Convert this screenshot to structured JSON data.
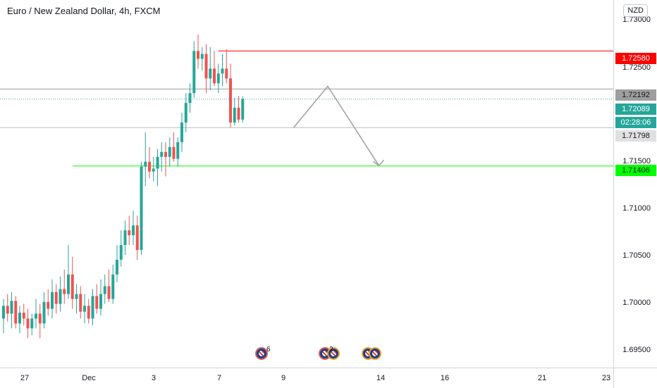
{
  "header": {
    "title": "Euro / New Zealand Dollar, 4h, FXCM"
  },
  "price_axis": {
    "currency_button": "NZD",
    "ticks": [
      "1.73000",
      "1.72500",
      "1.71500",
      "1.71000",
      "1.70500",
      "1.70000",
      "1.69500"
    ]
  },
  "time_axis": {
    "ticks": [
      "27",
      "Dec",
      "3",
      "7",
      "9",
      "14",
      "16",
      "21",
      "23"
    ]
  },
  "price_labels": [
    {
      "text": "1.72580",
      "bg": "#ff0000",
      "fg": "#ffffff",
      "name": "resistance-price-label"
    },
    {
      "text": "1.72192",
      "bg": "#9e9e9e",
      "fg": "#131722",
      "name": "horizontal-level-price-label"
    },
    {
      "text": "1.72089",
      "bg": "#26a69a",
      "fg": "#ffffff",
      "name": "last-price-label"
    },
    {
      "text": "02:28:06",
      "bg": "#26a69a",
      "fg": "#ffffff",
      "name": "bar-countdown-label"
    },
    {
      "text": "1.71798",
      "bg": "#e0e0e0",
      "fg": "#131722",
      "name": "lower-level-price-label"
    },
    {
      "text": "1.71406",
      "bg": "#00ff00",
      "fg": "#131722",
      "name": "target-price-label"
    }
  ],
  "events": [
    {
      "count": "6",
      "name": "economic-event-group-1"
    },
    {
      "count": "2",
      "name": "economic-event-group-2"
    },
    {
      "count": "",
      "name": "economic-event-group-3"
    }
  ],
  "colors": {
    "up": "#26a69a",
    "down": "#ef5350",
    "resistance": "#ff0000",
    "target": "#00ff00",
    "level": "#9e9e9e",
    "projection": "#9e9e9e"
  },
  "chart_data": {
    "type": "candlestick",
    "symbol": "EUR/NZD",
    "interval": "4h",
    "ylim": [
      1.6935,
      1.731
    ],
    "candles": [
      [
        1.6985,
        1.7005,
        1.697,
        1.6998
      ],
      [
        1.6998,
        1.701,
        1.6982,
        1.699
      ],
      [
        1.699,
        1.7012,
        1.6975,
        1.7003
      ],
      [
        1.7003,
        1.7008,
        1.6975,
        1.698
      ],
      [
        1.698,
        1.6998,
        1.697,
        1.6991
      ],
      [
        1.6991,
        1.7,
        1.6978,
        1.6985
      ],
      [
        1.6985,
        1.6995,
        1.6965,
        1.6975
      ],
      [
        1.6975,
        1.699,
        1.6968,
        1.6985
      ],
      [
        1.6985,
        1.7005,
        1.6975,
        1.699
      ],
      [
        1.699,
        1.7,
        1.6965,
        1.698
      ],
      [
        1.698,
        1.7012,
        1.6975,
        1.7002
      ],
      [
        1.7002,
        1.7015,
        1.6988,
        1.6995
      ],
      [
        1.6995,
        1.7025,
        1.6985,
        1.7012
      ],
      [
        1.7012,
        1.702,
        1.699,
        1.7
      ],
      [
        1.7,
        1.7028,
        1.6992,
        1.7015
      ],
      [
        1.7015,
        1.7035,
        1.7,
        1.701
      ],
      [
        1.701,
        1.706,
        1.7005,
        1.703
      ],
      [
        1.703,
        1.7048,
        1.6995,
        1.7005
      ],
      [
        1.7005,
        1.702,
        1.699,
        1.701
      ],
      [
        1.701,
        1.7018,
        1.6985,
        1.6992
      ],
      [
        1.6992,
        1.701,
        1.698,
        1.6998
      ],
      [
        1.6998,
        1.7005,
        1.698,
        1.6985
      ],
      [
        1.6985,
        1.7015,
        1.6978,
        1.7008
      ],
      [
        1.7008,
        1.702,
        1.699,
        1.6995
      ],
      [
        1.6995,
        1.7025,
        1.6988,
        1.701
      ],
      [
        1.701,
        1.703,
        1.7,
        1.7018
      ],
      [
        1.7018,
        1.7035,
        1.7002,
        1.7005
      ],
      [
        1.7005,
        1.704,
        1.7,
        1.703
      ],
      [
        1.703,
        1.706,
        1.7022,
        1.7045
      ],
      [
        1.7045,
        1.7075,
        1.7038,
        1.706
      ],
      [
        1.706,
        1.7085,
        1.705,
        1.7075
      ],
      [
        1.7075,
        1.709,
        1.706,
        1.707
      ],
      [
        1.707,
        1.7095,
        1.706,
        1.708
      ],
      [
        1.708,
        1.709,
        1.7045,
        1.7055
      ],
      [
        1.7055,
        1.7145,
        1.705,
        1.714
      ],
      [
        1.714,
        1.7175,
        1.712,
        1.7145
      ],
      [
        1.7145,
        1.716,
        1.7128,
        1.7135
      ],
      [
        1.7135,
        1.715,
        1.7125,
        1.7138
      ],
      [
        1.7138,
        1.7158,
        1.712,
        1.715
      ],
      [
        1.715,
        1.7165,
        1.7135,
        1.7155
      ],
      [
        1.7155,
        1.7165,
        1.713,
        1.715
      ],
      [
        1.715,
        1.717,
        1.714,
        1.716
      ],
      [
        1.716,
        1.7175,
        1.7145,
        1.7148
      ],
      [
        1.7148,
        1.717,
        1.714,
        1.7165
      ],
      [
        1.7165,
        1.7195,
        1.7155,
        1.7185
      ],
      [
        1.7185,
        1.7215,
        1.7175,
        1.7205
      ],
      [
        1.7205,
        1.7225,
        1.7195,
        1.7215
      ],
      [
        1.7215,
        1.7268,
        1.721,
        1.7258
      ],
      [
        1.7258,
        1.7275,
        1.724,
        1.725
      ],
      [
        1.725,
        1.7262,
        1.7238,
        1.7255
      ],
      [
        1.7255,
        1.7265,
        1.7215,
        1.723
      ],
      [
        1.723,
        1.7262,
        1.7218,
        1.724
      ],
      [
        1.724,
        1.7258,
        1.7222,
        1.7225
      ],
      [
        1.7225,
        1.7245,
        1.7215,
        1.7235
      ],
      [
        1.7235,
        1.7255,
        1.7222,
        1.724
      ],
      [
        1.724,
        1.726,
        1.7225,
        1.723
      ],
      [
        1.723,
        1.7245,
        1.718,
        1.7185
      ],
      [
        1.7185,
        1.721,
        1.7182,
        1.72
      ],
      [
        1.72,
        1.7212,
        1.7185,
        1.7188
      ],
      [
        1.7188,
        1.7212,
        1.7185,
        1.7209
      ]
    ],
    "horizontal_lines": [
      {
        "name": "resistance",
        "price": 1.7258,
        "color": "#ff0000"
      },
      {
        "name": "level",
        "price": 1.72192,
        "color": "#9e9e9e"
      },
      {
        "name": "last-price",
        "price": 1.72089,
        "color": "#26a69a",
        "dotted": true
      },
      {
        "name": "lower-level",
        "price": 1.71798,
        "color": "#bdbdbd"
      },
      {
        "name": "target",
        "price": 1.71406,
        "color": "#00ff00"
      }
    ],
    "projection_path": [
      {
        "bar_offset": 3,
        "price": 1.718
      },
      {
        "bar_offset": 5,
        "price": 1.7222
      },
      {
        "bar_offset": 8,
        "price": 1.7141
      }
    ]
  }
}
